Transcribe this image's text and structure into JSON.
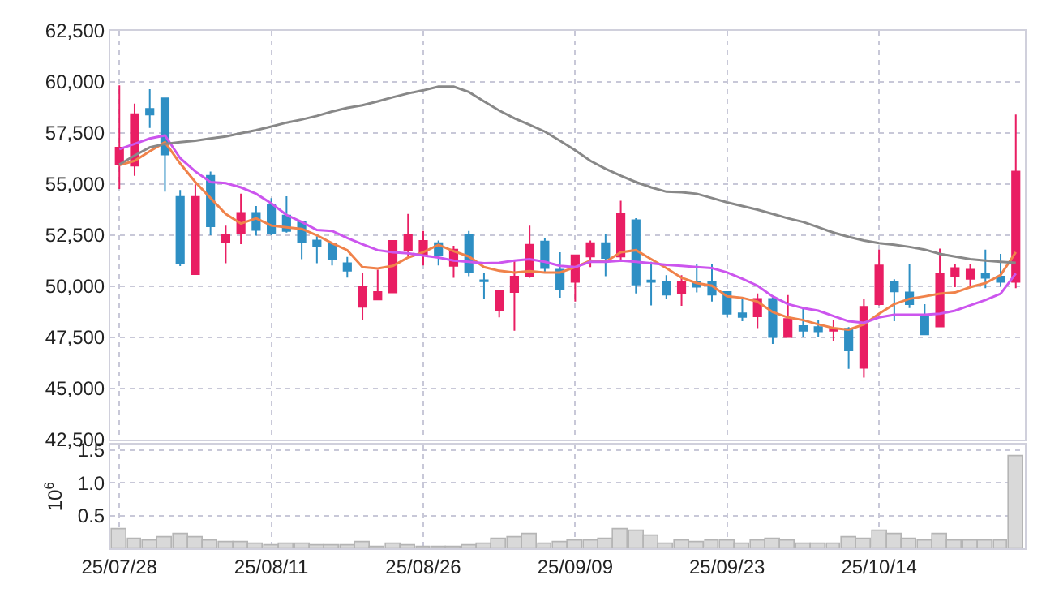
{
  "chart_data": [
    {
      "type": "candlestick",
      "categories": [
        null,
        null,
        null,
        null,
        null,
        null,
        null,
        null,
        null,
        null,
        null,
        null,
        null,
        null,
        null,
        null,
        null,
        null,
        null,
        null,
        null,
        null,
        null,
        null,
        null,
        null,
        null,
        null,
        null,
        null,
        null,
        null,
        null,
        null,
        null,
        null,
        null,
        null,
        null,
        null,
        null,
        null,
        null,
        null,
        null,
        null,
        null,
        null,
        null,
        null,
        null,
        null,
        null,
        null,
        null,
        null,
        null,
        null,
        null,
        null
      ],
      "ohlc": [
        [
          55950,
          59830,
          54760,
          56790
        ],
        [
          55900,
          58940,
          55410,
          58420
        ],
        [
          58680,
          59640,
          57750,
          58400
        ],
        [
          59200,
          59200,
          54630,
          56450
        ],
        [
          54380,
          54710,
          50990,
          51120
        ],
        [
          50600,
          54990,
          50600,
          54380
        ],
        [
          55410,
          55620,
          52500,
          52940
        ],
        [
          52160,
          52970,
          51130,
          52500
        ],
        [
          52580,
          54530,
          52060,
          53590
        ],
        [
          53590,
          53930,
          52480,
          52760
        ],
        [
          53980,
          54320,
          52500,
          52580
        ],
        [
          53460,
          54400,
          52630,
          52710
        ],
        [
          53150,
          53150,
          51330,
          52160
        ],
        [
          52240,
          52450,
          51130,
          51980
        ],
        [
          52060,
          52060,
          51020,
          51310
        ],
        [
          51130,
          51440,
          50430,
          50760
        ],
        [
          49000,
          50680,
          48350,
          49960
        ],
        [
          49360,
          50810,
          49360,
          49720
        ],
        [
          49700,
          52220,
          49700,
          52220
        ],
        [
          51770,
          53540,
          51460,
          52500
        ],
        [
          51540,
          52710,
          51020,
          52220
        ],
        [
          52110,
          52240,
          51020,
          51540
        ],
        [
          51000,
          51980,
          50420,
          51800
        ],
        [
          52500,
          52710,
          50500,
          50680
        ],
        [
          50300,
          50680,
          49390,
          50250
        ],
        [
          48810,
          49780,
          48480,
          49780
        ],
        [
          49720,
          51260,
          47830,
          50480
        ],
        [
          50480,
          52970,
          50420,
          52030
        ],
        [
          52190,
          52370,
          50680,
          50890
        ],
        [
          50810,
          51670,
          49440,
          49850
        ],
        [
          50220,
          51520,
          49260,
          51520
        ],
        [
          51460,
          52240,
          50940,
          52110
        ],
        [
          52110,
          52550,
          50500,
          51390
        ],
        [
          51460,
          54190,
          51260,
          53540
        ],
        [
          53230,
          53330,
          49650,
          50090
        ],
        [
          50290,
          51200,
          49070,
          50220
        ],
        [
          50220,
          50550,
          49390,
          49590
        ],
        [
          49650,
          50550,
          49050,
          50240
        ],
        [
          50240,
          51070,
          49700,
          49980
        ],
        [
          50240,
          51070,
          49260,
          49590
        ],
        [
          49720,
          49720,
          48480,
          48660
        ],
        [
          48680,
          49390,
          48290,
          48500
        ],
        [
          48530,
          49650,
          47960,
          49390
        ],
        [
          49390,
          49520,
          47180,
          47520
        ],
        [
          47520,
          49570,
          47520,
          48400
        ],
        [
          48060,
          48940,
          47520,
          47830
        ],
        [
          48010,
          48350,
          47520,
          47800
        ],
        [
          47830,
          48350,
          47310,
          47930
        ],
        [
          47930,
          48010,
          45960,
          46870
        ],
        [
          46010,
          49390,
          45540,
          49000
        ],
        [
          49130,
          51800,
          49070,
          51020
        ],
        [
          50240,
          50350,
          48290,
          49750
        ],
        [
          49700,
          51070,
          48940,
          49130
        ],
        [
          48610,
          49130,
          47650,
          47650
        ],
        [
          48040,
          51850,
          48040,
          50630
        ],
        [
          50480,
          51070,
          49960,
          50890
        ],
        [
          50370,
          51070,
          49960,
          50810
        ],
        [
          50630,
          51800,
          49910,
          50420
        ],
        [
          50480,
          51590,
          49980,
          50220
        ],
        [
          50220,
          58400,
          49910,
          55620
        ]
      ],
      "colors": [
        "#e91e63",
        "#e91e63",
        "#2e8fc4",
        "#2e8fc4",
        "#2e8fc4",
        "#e91e63",
        "#2e8fc4",
        "#e91e63",
        "#e91e63",
        "#2e8fc4",
        "#2e8fc4",
        "#2e8fc4",
        "#2e8fc4",
        "#2e8fc4",
        "#2e8fc4",
        "#2e8fc4",
        "#e91e63",
        "#e91e63",
        "#e91e63",
        "#e91e63",
        "#e91e63",
        "#2e8fc4",
        "#e91e63",
        "#2e8fc4",
        "#2e8fc4",
        "#e91e63",
        "#e91e63",
        "#e91e63",
        "#2e8fc4",
        "#2e8fc4",
        "#e91e63",
        "#e91e63",
        "#2e8fc4",
        "#e91e63",
        "#2e8fc4",
        "#2e8fc4",
        "#2e8fc4",
        "#e91e63",
        "#2e8fc4",
        "#2e8fc4",
        "#2e8fc4",
        "#2e8fc4",
        "#e91e63",
        "#2e8fc4",
        "#e91e63",
        "#2e8fc4",
        "#2e8fc4",
        "#e91e63",
        "#2e8fc4",
        "#e91e63",
        "#e91e63",
        "#2e8fc4",
        "#2e8fc4",
        "#2e8fc4",
        "#e91e63",
        "#e91e63",
        "#e91e63",
        "#2e8fc4",
        "#2e8fc4",
        "#e91e63"
      ],
      "series": [
        {
          "type": "line",
          "color": "#f0824a",
          "values": [
            55930,
            56140,
            56610,
            57050,
            56010,
            55100,
            54320,
            53540,
            53070,
            53330,
            52970,
            52890,
            52810,
            52500,
            52110,
            51770,
            50940,
            50870,
            51000,
            51410,
            51670,
            52030,
            51720,
            51460,
            50940,
            50760,
            50680,
            50740,
            50680,
            50680,
            50940,
            51260,
            51200,
            51670,
            51770,
            51330,
            50890,
            50420,
            50160,
            50030,
            49510,
            49440,
            49250,
            48740,
            48480,
            48350,
            48140,
            47960,
            47880,
            48140,
            48660,
            49130,
            49390,
            49510,
            49640,
            49700,
            49960,
            50160,
            50550,
            51670
          ]
        },
        {
          "type": "line",
          "color": "#cc55ee",
          "values": [
            56710,
            56970,
            57230,
            57380,
            56270,
            55620,
            55100,
            55050,
            54840,
            54530,
            54060,
            53490,
            53150,
            52760,
            52710,
            52370,
            52060,
            51770,
            51670,
            51620,
            51510,
            51410,
            51260,
            51200,
            51130,
            51150,
            51260,
            51330,
            51200,
            51000,
            50940,
            51200,
            51200,
            51260,
            51200,
            51130,
            51050,
            51000,
            50940,
            50890,
            50680,
            50370,
            50030,
            49510,
            49130,
            48940,
            48810,
            48550,
            48290,
            48220,
            48480,
            48610,
            48610,
            48610,
            48660,
            48810,
            49070,
            49330,
            49640,
            50630
          ]
        },
        {
          "type": "line",
          "color": "#888888",
          "values": [
            55960,
            56400,
            56800,
            56970,
            57050,
            57120,
            57230,
            57330,
            57490,
            57640,
            57820,
            58010,
            58160,
            58340,
            58550,
            58730,
            58860,
            59050,
            59250,
            59440,
            59590,
            59770,
            59770,
            59510,
            59050,
            58600,
            58220,
            57900,
            57570,
            57120,
            56660,
            56140,
            55750,
            55410,
            55100,
            54840,
            54630,
            54600,
            54530,
            54320,
            54110,
            53930,
            53750,
            53540,
            53330,
            53150,
            52890,
            52630,
            52420,
            52240,
            52110,
            52030,
            51930,
            51800,
            51590,
            51460,
            51330,
            51260,
            51200,
            51150
          ]
        }
      ],
      "ylim": [
        42500,
        62500
      ],
      "yticks": [
        {
          "value": 42500,
          "label": "42,500"
        },
        {
          "value": 45000,
          "label": "45,000"
        },
        {
          "value": 47500,
          "label": "47,500"
        },
        {
          "value": 50000,
          "label": "50,000"
        },
        {
          "value": 52500,
          "label": "52,500"
        },
        {
          "value": 55000,
          "label": "55,000"
        },
        {
          "value": 57500,
          "label": "57,500"
        },
        {
          "value": 60000,
          "label": "60,000"
        },
        {
          "value": 62500,
          "label": "62,500"
        }
      ],
      "grid": true,
      "tick_labels": "y"
    },
    {
      "type": "bar",
      "categories": [
        "25/07/28",
        null,
        null,
        null,
        null,
        null,
        null,
        null,
        null,
        null,
        "25/08/11",
        null,
        null,
        null,
        null,
        null,
        null,
        null,
        null,
        null,
        "25/08/26",
        null,
        null,
        null,
        null,
        null,
        null,
        null,
        null,
        null,
        "25/09/09",
        null,
        null,
        null,
        null,
        null,
        null,
        null,
        null,
        null,
        "25/09/23",
        null,
        null,
        null,
        null,
        null,
        null,
        null,
        null,
        null,
        "25/10/14",
        null,
        null,
        null,
        null,
        null,
        null,
        null,
        null,
        null
      ],
      "values": [
        0.29,
        0.15,
        0.12,
        0.17,
        0.23,
        0.17,
        0.12,
        0.1,
        0.1,
        0.07,
        0.05,
        0.08,
        0.06,
        0.04,
        0.05,
        0.05,
        0.1,
        0.03,
        0.07,
        0.05,
        0.03,
        0.03,
        0.03,
        0.05,
        0.08,
        0.15,
        0.17,
        0.22,
        0.08,
        0.1,
        0.13,
        0.12,
        0.15,
        0.29,
        0.26,
        0.2,
        0.08,
        0.12,
        0.1,
        0.12,
        0.12,
        0.08,
        0.12,
        0.15,
        0.11,
        0.08,
        0.06,
        0.08,
        0.17,
        0.15,
        0.26,
        0.22,
        0.15,
        0.11,
        0.22,
        0.11,
        0.11,
        0.11,
        0.13,
        1.4
      ],
      "color": "#d9d9d9",
      "ylabel": "10$^{6}$",
      "ylim": [
        0,
        1.58
      ],
      "yticks": [
        0.5,
        {
          "value": 1.0,
          "label": "1.0"
        },
        1.5
      ],
      "grid": true
    }
  ]
}
